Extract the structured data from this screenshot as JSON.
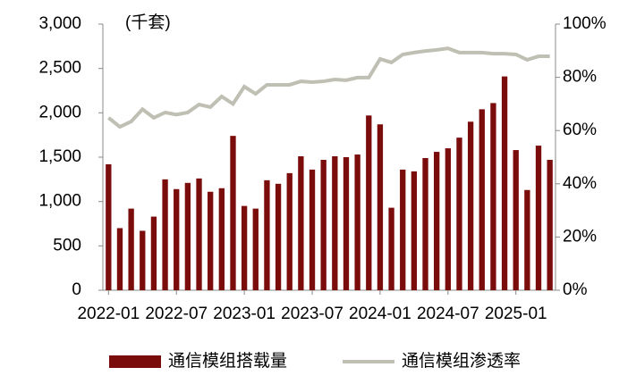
{
  "chart_data": {
    "type": "bar-line",
    "annotation": "(千套)",
    "categories": [
      "2022-01",
      null,
      null,
      null,
      null,
      null,
      "2022-07",
      null,
      null,
      null,
      null,
      null,
      "2023-01",
      null,
      null,
      null,
      null,
      null,
      "2023-07",
      null,
      null,
      null,
      null,
      null,
      "2024-01",
      null,
      null,
      null,
      null,
      null,
      "2024-07",
      null,
      null,
      null,
      null,
      null,
      "2025-01",
      null,
      null,
      null
    ],
    "series": [
      {
        "name": "通信模组搭载量",
        "type": "bar",
        "color": "#7B0C0C",
        "values": [
          1420,
          700,
          920,
          670,
          830,
          1250,
          1140,
          1210,
          1260,
          1110,
          1150,
          1740,
          950,
          920,
          1240,
          1200,
          1320,
          1510,
          1360,
          1470,
          1510,
          1500,
          1530,
          1970,
          1870,
          930,
          1360,
          1340,
          1490,
          1560,
          1600,
          1720,
          1900,
          2040,
          2110,
          2410,
          1580,
          1130,
          1630,
          1470
        ]
      },
      {
        "name": "通信模组渗透率",
        "type": "line",
        "axis": "y2",
        "color": "#BFBFB3",
        "values": [
          64.8,
          61.4,
          63.4,
          68,
          64.8,
          66.8,
          66,
          66.8,
          69.8,
          68.8,
          72.8,
          70,
          76.5,
          73.8,
          77.2,
          77.2,
          77.2,
          78.5,
          78.2,
          78.5,
          79.2,
          78.9,
          79.9,
          79.9,
          86.9,
          85.6,
          88.6,
          89.3,
          89.9,
          90.3,
          90.9,
          89.3,
          89.3,
          89.3,
          88.9,
          88.9,
          88.6,
          86.6,
          87.9,
          87.9
        ]
      }
    ],
    "ylim": [
      0,
      3000
    ],
    "yticks": [
      0,
      500,
      {
        "value": 1000,
        "label": "1,000"
      },
      {
        "value": 1500,
        "label": "1,500"
      },
      {
        "value": 2000,
        "label": "2,000"
      },
      {
        "value": 2500,
        "label": "2,500"
      },
      {
        "value": 3000,
        "label": "3,000"
      }
    ],
    "y2lim": [
      0,
      100
    ],
    "y2ticks": [
      {
        "value": 0,
        "label": "0%"
      },
      {
        "value": 20,
        "label": "20%"
      },
      {
        "value": 40,
        "label": "40%"
      },
      {
        "value": 60,
        "label": "60%"
      },
      {
        "value": 80,
        "label": "80%"
      },
      {
        "value": 100,
        "label": "100%"
      }
    ],
    "grid": false,
    "legend": "bottom"
  }
}
